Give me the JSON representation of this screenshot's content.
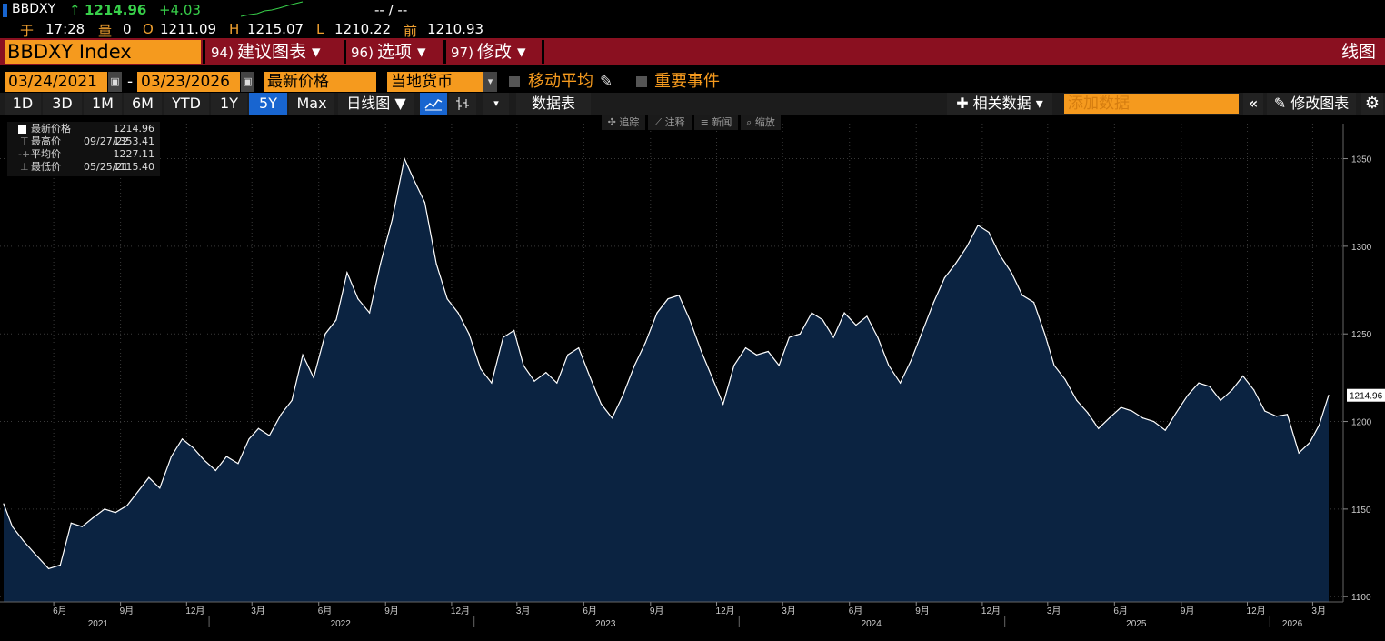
{
  "ticker": {
    "symbol": "BBDXY",
    "arrow": "↑",
    "last": "1214.96",
    "change": "+4.03",
    "dashes": "-- / --",
    "time_label": "于",
    "time": "17:28",
    "vol_label": "量",
    "vol": "0",
    "open_label": "O",
    "open": "1211.09",
    "high_label": "H",
    "high": "1215.07",
    "low_label": "L",
    "low": "1210.22",
    "prev_label": "前",
    "prev": "1210.93"
  },
  "header": {
    "security": "BBDXY Index",
    "menus": [
      {
        "num": "94)",
        "label": "建议图表 ▾"
      },
      {
        "num": "96)",
        "label": "选项 ▾"
      },
      {
        "num": "97)",
        "label": "修改 ▾"
      }
    ],
    "title": "线图"
  },
  "controls": {
    "start_date": "03/24/2021",
    "dash": "-",
    "end_date": "03/23/2026",
    "price_field": "最新价格",
    "currency": "当地货币",
    "moving_avg": "移动平均",
    "events": "重要事件"
  },
  "toolbar": {
    "ranges": [
      "1D",
      "3D",
      "1M",
      "6M",
      "YTD",
      "1Y",
      "5Y",
      "Max"
    ],
    "active_range": "5Y",
    "period": "日线图 ▼",
    "datatable": "数据表",
    "related": "✚ 相关数据 ▾",
    "add_data_placeholder": "添加数据",
    "collapse": "«",
    "edit_chart": "修改图表",
    "gear": "gear-icon"
  },
  "annotations_bar": [
    "✣ 追踪",
    "⟋ 注释",
    "≡ 新闻",
    "⌕ 缩放"
  ],
  "legend": [
    {
      "label": "最新价格",
      "date": "",
      "value": "1214.96"
    },
    {
      "label": "最高价",
      "date": "09/27/22",
      "value": "1353.41"
    },
    {
      "label": "平均价",
      "date": "",
      "value": "1227.11"
    },
    {
      "label": "最低价",
      "date": "05/25/21",
      "value": "1115.40"
    }
  ],
  "colors": {
    "line": "#ffffff",
    "fill": "#0b2341",
    "accent": "#f59a1e",
    "header_bg": "#8a1020",
    "active": "#1865d0"
  },
  "chart_data": {
    "type": "area",
    "title": "",
    "xlabel": "",
    "ylabel": "",
    "ylim": [
      1097,
      1370
    ],
    "xlim": [
      "2021-03-24",
      "2026-03-23"
    ],
    "y_ticks": [
      "1100",
      "1150",
      "1200",
      "1250",
      "1300",
      "1350"
    ],
    "x_month_ticks": [
      {
        "date": "2021-03-01",
        "label": "3月"
      },
      {
        "date": "2021-06-01",
        "label": "6月"
      },
      {
        "date": "2021-09-01",
        "label": "9月"
      },
      {
        "date": "2021-12-01",
        "label": "12月"
      },
      {
        "date": "2022-03-01",
        "label": "3月"
      },
      {
        "date": "2022-06-01",
        "label": "6月"
      },
      {
        "date": "2022-09-01",
        "label": "9月"
      },
      {
        "date": "2022-12-01",
        "label": "12月"
      },
      {
        "date": "2023-03-01",
        "label": "3月"
      },
      {
        "date": "2023-06-01",
        "label": "6月"
      },
      {
        "date": "2023-09-01",
        "label": "9月"
      },
      {
        "date": "2023-12-01",
        "label": "12月"
      },
      {
        "date": "2024-03-01",
        "label": "3月"
      },
      {
        "date": "2024-06-01",
        "label": "6月"
      },
      {
        "date": "2024-09-01",
        "label": "9月"
      },
      {
        "date": "2024-12-01",
        "label": "12月"
      },
      {
        "date": "2025-03-01",
        "label": "3月"
      },
      {
        "date": "2025-06-01",
        "label": "6月"
      },
      {
        "date": "2025-09-01",
        "label": "9月"
      },
      {
        "date": "2025-12-01",
        "label": "12月"
      },
      {
        "date": "2026-03-01",
        "label": "3月"
      }
    ],
    "x_year_labels": [
      {
        "date": "2021-08-01",
        "label": "2021"
      },
      {
        "date": "2022-07-01",
        "label": "2022"
      },
      {
        "date": "2023-07-01",
        "label": "2023"
      },
      {
        "date": "2024-07-01",
        "label": "2024"
      },
      {
        "date": "2025-07-01",
        "label": "2025"
      },
      {
        "date": "2026-02-01",
        "label": "2026"
      }
    ],
    "last_value_label": "1214.96",
    "series": [
      {
        "x": [
          "2021-03-24",
          "2021-04-05",
          "2021-04-20",
          "2021-05-05",
          "2021-05-25",
          "2021-06-10",
          "2021-06-25",
          "2021-07-10",
          "2021-07-25",
          "2021-08-10",
          "2021-08-25",
          "2021-09-10",
          "2021-09-25",
          "2021-10-10",
          "2021-10-25",
          "2021-11-10",
          "2021-11-25",
          "2021-12-10",
          "2021-12-25",
          "2022-01-10",
          "2022-01-25",
          "2022-02-10",
          "2022-02-25",
          "2022-03-10",
          "2022-03-25",
          "2022-04-10",
          "2022-04-25",
          "2022-05-10",
          "2022-05-25",
          "2022-06-10",
          "2022-06-25",
          "2022-07-10",
          "2022-07-25",
          "2022-08-10",
          "2022-08-25",
          "2022-09-10",
          "2022-09-27",
          "2022-10-10",
          "2022-10-25",
          "2022-11-10",
          "2022-11-25",
          "2022-12-10",
          "2022-12-25",
          "2023-01-10",
          "2023-01-25",
          "2023-02-10",
          "2023-02-25",
          "2023-03-10",
          "2023-03-25",
          "2023-04-10",
          "2023-04-25",
          "2023-05-10",
          "2023-05-25",
          "2023-06-10",
          "2023-06-25",
          "2023-07-10",
          "2023-07-25",
          "2023-08-10",
          "2023-08-25",
          "2023-09-10",
          "2023-09-25",
          "2023-10-10",
          "2023-10-25",
          "2023-11-10",
          "2023-11-25",
          "2023-12-10",
          "2023-12-25",
          "2024-01-10",
          "2024-01-25",
          "2024-02-10",
          "2024-02-25",
          "2024-03-10",
          "2024-03-25",
          "2024-04-10",
          "2024-04-25",
          "2024-05-10",
          "2024-05-25",
          "2024-06-10",
          "2024-06-25",
          "2024-07-10",
          "2024-07-25",
          "2024-08-10",
          "2024-08-25",
          "2024-09-10",
          "2024-09-25",
          "2024-10-10",
          "2024-10-25",
          "2024-11-10",
          "2024-11-25",
          "2024-12-10",
          "2024-12-25",
          "2025-01-10",
          "2025-01-25",
          "2025-02-10",
          "2025-02-25",
          "2025-03-10",
          "2025-03-25",
          "2025-04-10",
          "2025-04-25",
          "2025-05-10",
          "2025-05-25",
          "2025-06-10",
          "2025-06-25",
          "2025-07-10",
          "2025-07-25",
          "2025-08-10",
          "2025-08-25",
          "2025-09-10",
          "2025-09-25",
          "2025-10-10",
          "2025-10-25",
          "2025-11-10",
          "2025-11-25",
          "2025-12-10",
          "2025-12-25",
          "2026-01-10",
          "2026-01-25",
          "2026-02-10",
          "2026-02-25",
          "2026-03-10",
          "2026-03-23"
        ],
        "values": [
          1153,
          1140,
          1132,
          1125,
          1116,
          1118,
          1142,
          1140,
          1145,
          1150,
          1148,
          1152,
          1160,
          1168,
          1162,
          1180,
          1190,
          1185,
          1178,
          1172,
          1180,
          1176,
          1190,
          1196,
          1192,
          1204,
          1212,
          1238,
          1225,
          1250,
          1258,
          1285,
          1270,
          1262,
          1290,
          1315,
          1350,
          1338,
          1325,
          1290,
          1270,
          1262,
          1250,
          1230,
          1222,
          1248,
          1252,
          1232,
          1223,
          1228,
          1222,
          1238,
          1242,
          1225,
          1210,
          1202,
          1215,
          1232,
          1245,
          1262,
          1270,
          1272,
          1258,
          1240,
          1225,
          1210,
          1232,
          1242,
          1238,
          1240,
          1232,
          1248,
          1250,
          1262,
          1258,
          1248,
          1262,
          1255,
          1260,
          1248,
          1232,
          1222,
          1235,
          1252,
          1268,
          1282,
          1290,
          1300,
          1312,
          1308,
          1295,
          1285,
          1272,
          1268,
          1250,
          1232,
          1224,
          1212,
          1205,
          1196,
          1202,
          1208,
          1206,
          1202,
          1200,
          1195,
          1205,
          1215,
          1222,
          1220,
          1212,
          1218,
          1226,
          1218,
          1206,
          1203,
          1204,
          1182,
          1188,
          1198,
          1214.96
        ]
      }
    ]
  }
}
